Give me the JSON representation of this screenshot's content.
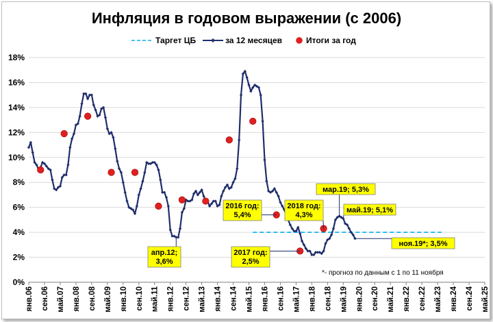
{
  "chart_data": {
    "type": "line",
    "title": "Инфляция в годовом выражении (с 2006)",
    "ylim": [
      0,
      18
    ],
    "y_ticks": [
      "0%",
      "2%",
      "4%",
      "6%",
      "8%",
      "10%",
      "12%",
      "14%",
      "16%",
      "18%"
    ],
    "x_ticks": [
      "янв.06",
      "сен.06",
      "май.07",
      "янв.08",
      "сен.08",
      "май.09",
      "янв.10",
      "сен.10",
      "май.11",
      "янв.12",
      "сен.12",
      "май.13",
      "янв.14",
      "сен.14",
      "май.15",
      "янв.16",
      "сен.16",
      "май.17",
      "янв.18",
      "сен.18",
      "май.19",
      "янв.20",
      "сен.20",
      "май.21",
      "янв.22",
      "сен.22",
      "май.23",
      "янв.24",
      "сен.24",
      "май.25"
    ],
    "grid": true,
    "legend": {
      "placement": "top-center",
      "items": [
        {
          "label": "Таргет ЦБ",
          "style": "dashed",
          "color": "#00b0f0"
        },
        {
          "label": "за 12 месяцев",
          "style": "line-markers",
          "color": "#1f2d6b"
        },
        {
          "label": "Итоги за год",
          "style": "dot",
          "color": "#e02020"
        }
      ]
    },
    "series": [
      {
        "name": "за 12 месяцев",
        "color": "#1f2d6b",
        "points": [
          [
            0,
            10.8
          ],
          [
            1,
            11.2
          ],
          [
            2,
            10.4
          ],
          [
            3,
            9.6
          ],
          [
            4,
            9.4
          ],
          [
            5,
            9.0
          ],
          [
            6,
            9.2
          ],
          [
            7,
            9.6
          ],
          [
            8,
            9.5
          ],
          [
            9,
            9.3
          ],
          [
            10,
            9.1
          ],
          [
            11,
            9.0
          ],
          [
            12,
            8.2
          ],
          [
            13,
            7.5
          ],
          [
            14,
            7.4
          ],
          [
            15,
            7.6
          ],
          [
            16,
            7.7
          ],
          [
            17,
            8.4
          ],
          [
            18,
            8.6
          ],
          [
            19,
            8.6
          ],
          [
            20,
            9.4
          ],
          [
            21,
            10.8
          ],
          [
            22,
            11.5
          ],
          [
            23,
            11.9
          ],
          [
            24,
            12.6
          ],
          [
            25,
            12.7
          ],
          [
            26,
            13.3
          ],
          [
            27,
            14.3
          ],
          [
            28,
            15.1
          ],
          [
            29,
            15.1
          ],
          [
            30,
            14.7
          ],
          [
            31,
            15.0
          ],
          [
            32,
            15.0
          ],
          [
            33,
            14.2
          ],
          [
            34,
            13.8
          ],
          [
            35,
            13.3
          ],
          [
            36,
            13.4
          ],
          [
            37,
            13.9
          ],
          [
            38,
            14.0
          ],
          [
            39,
            13.2
          ],
          [
            40,
            12.3
          ],
          [
            41,
            11.9
          ],
          [
            42,
            12.0
          ],
          [
            43,
            11.6
          ],
          [
            44,
            10.7
          ],
          [
            45,
            9.7
          ],
          [
            46,
            9.1
          ],
          [
            47,
            8.8
          ],
          [
            48,
            8.0
          ],
          [
            49,
            7.2
          ],
          [
            50,
            6.5
          ],
          [
            51,
            6.0
          ],
          [
            52,
            5.9
          ],
          [
            53,
            5.8
          ],
          [
            54,
            5.5
          ],
          [
            55,
            6.1
          ],
          [
            56,
            7.0
          ],
          [
            57,
            7.5
          ],
          [
            58,
            8.1
          ],
          [
            59,
            8.8
          ],
          [
            60,
            9.6
          ],
          [
            61,
            9.5
          ],
          [
            62,
            9.5
          ],
          [
            63,
            9.6
          ],
          [
            64,
            9.6
          ],
          [
            65,
            9.4
          ],
          [
            66,
            9.0
          ],
          [
            67,
            8.2
          ],
          [
            68,
            7.2
          ],
          [
            69,
            7.2
          ],
          [
            70,
            6.8
          ],
          [
            71,
            6.1
          ],
          [
            72,
            4.2
          ],
          [
            73,
            3.7
          ],
          [
            74,
            3.7
          ],
          [
            75,
            3.6
          ],
          [
            76,
            3.6
          ],
          [
            77,
            4.3
          ],
          [
            78,
            5.6
          ],
          [
            79,
            5.9
          ],
          [
            80,
            6.6
          ],
          [
            81,
            6.5
          ],
          [
            82,
            6.5
          ],
          [
            83,
            6.6
          ],
          [
            84,
            7.1
          ],
          [
            85,
            7.3
          ],
          [
            86,
            7.0
          ],
          [
            87,
            7.2
          ],
          [
            88,
            7.4
          ],
          [
            89,
            6.9
          ],
          [
            90,
            6.5
          ],
          [
            91,
            6.5
          ],
          [
            92,
            6.1
          ],
          [
            93,
            6.3
          ],
          [
            94,
            6.5
          ],
          [
            95,
            6.5
          ],
          [
            96,
            6.1
          ],
          [
            97,
            6.2
          ],
          [
            98,
            6.9
          ],
          [
            99,
            7.3
          ],
          [
            100,
            7.6
          ],
          [
            101,
            7.8
          ],
          [
            102,
            7.5
          ],
          [
            103,
            7.6
          ],
          [
            104,
            8.0
          ],
          [
            105,
            8.3
          ],
          [
            106,
            9.1
          ],
          [
            107,
            11.4
          ],
          [
            108,
            15.0
          ],
          [
            109,
            16.7
          ],
          [
            110,
            16.9
          ],
          [
            111,
            16.4
          ],
          [
            112,
            15.8
          ],
          [
            113,
            15.3
          ],
          [
            114,
            15.6
          ],
          [
            115,
            15.8
          ],
          [
            116,
            15.7
          ],
          [
            117,
            15.6
          ],
          [
            118,
            15.0
          ],
          [
            119,
            12.9
          ],
          [
            120,
            9.8
          ],
          [
            121,
            8.1
          ],
          [
            122,
            7.3
          ],
          [
            123,
            7.2
          ],
          [
            124,
            7.3
          ],
          [
            125,
            7.5
          ],
          [
            126,
            7.2
          ],
          [
            127,
            6.9
          ],
          [
            128,
            6.4
          ],
          [
            129,
            6.1
          ],
          [
            130,
            5.8
          ],
          [
            131,
            5.4
          ],
          [
            132,
            5.0
          ],
          [
            133,
            4.6
          ],
          [
            134,
            4.3
          ],
          [
            135,
            4.1
          ],
          [
            136,
            4.1
          ],
          [
            137,
            4.4
          ],
          [
            138,
            3.9
          ],
          [
            139,
            3.3
          ],
          [
            140,
            3.0
          ],
          [
            141,
            2.7
          ],
          [
            142,
            2.5
          ],
          [
            143,
            2.5
          ],
          [
            144,
            2.2
          ],
          [
            145,
            2.2
          ],
          [
            146,
            2.4
          ],
          [
            147,
            2.4
          ],
          [
            148,
            2.4
          ],
          [
            149,
            2.3
          ],
          [
            150,
            2.5
          ],
          [
            151,
            3.1
          ],
          [
            152,
            3.4
          ],
          [
            153,
            3.5
          ],
          [
            154,
            3.8
          ],
          [
            155,
            4.3
          ],
          [
            156,
            5.0
          ],
          [
            157,
            5.2
          ],
          [
            158,
            5.3
          ],
          [
            159,
            5.2
          ],
          [
            160,
            5.1
          ],
          [
            161,
            4.7
          ],
          [
            162,
            4.6
          ],
          [
            163,
            4.3
          ],
          [
            164,
            4.0
          ],
          [
            165,
            3.8
          ],
          [
            166,
            3.5
          ]
        ]
      },
      {
        "name": "Итоги за год",
        "color": "#e02020",
        "points": [
          [
            6,
            9.0
          ],
          [
            18,
            11.9
          ],
          [
            30,
            13.3
          ],
          [
            42,
            8.8
          ],
          [
            54,
            8.8
          ],
          [
            66,
            6.1
          ],
          [
            78,
            6.6
          ],
          [
            90,
            6.5
          ],
          [
            102,
            11.4
          ],
          [
            114,
            12.9
          ],
          [
            126,
            5.4
          ],
          [
            138,
            2.5
          ],
          [
            150,
            4.3
          ]
        ]
      },
      {
        "name": "Таргет ЦБ",
        "color": "#00b0f0",
        "points": [
          [
            114,
            4.0
          ],
          [
            210,
            4.0
          ]
        ]
      }
    ],
    "annotations": [
      {
        "text": [
          "апр.12;",
          "3,6%"
        ],
        "point": [
          75,
          3.6
        ]
      },
      {
        "text": [
          "2016 год:",
          "5,4%"
        ],
        "point": [
          126,
          5.4
        ]
      },
      {
        "text": [
          "2017 год:",
          "2,5%"
        ],
        "point": [
          138,
          2.5
        ]
      },
      {
        "text": [
          "2018 год:",
          "4,3%"
        ],
        "point": [
          150,
          4.3
        ]
      },
      {
        "text": [
          "мар.19; 5,3%"
        ],
        "point": [
          158,
          5.3
        ]
      },
      {
        "text": [
          "май.19; 5,1%"
        ],
        "point": [
          160,
          5.1
        ]
      },
      {
        "text": [
          "ноя.19*; 3,5%"
        ],
        "point": [
          166,
          3.5
        ]
      }
    ],
    "footnote": "*- прогноз по данным с 1 по 11 ноября"
  }
}
